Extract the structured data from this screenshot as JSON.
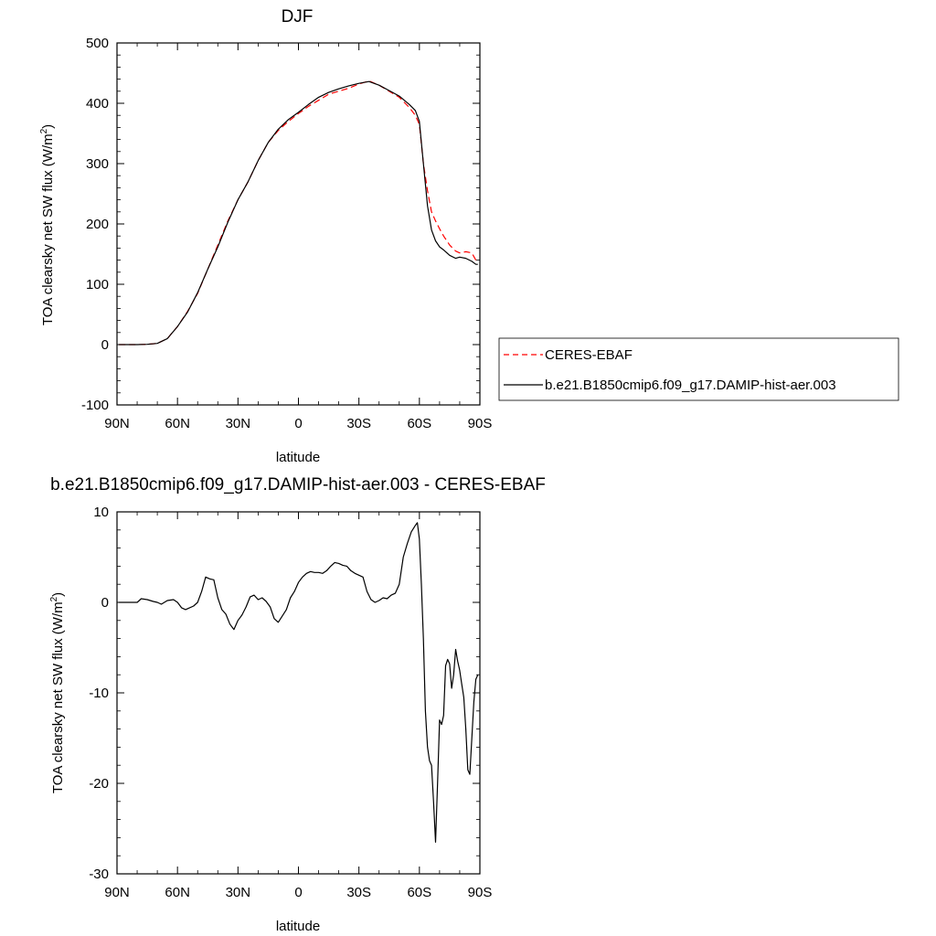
{
  "chart_data": [
    {
      "type": "line",
      "title": "DJF",
      "xlabel": "latitude",
      "ylabel": "TOA clearsky net SW flux (W/m",
      "ylabel_sup": "2",
      "ylabel_close": ")",
      "xlim": [
        90,
        -90
      ],
      "ylim": [
        -100,
        500
      ],
      "xticks": [
        {
          "value": 90,
          "label": "90N"
        },
        {
          "value": 60,
          "label": "60N"
        },
        {
          "value": 30,
          "label": "30N"
        },
        {
          "value": 0,
          "label": "0"
        },
        {
          "value": -30,
          "label": "30S"
        },
        {
          "value": -60,
          "label": "60S"
        },
        {
          "value": -90,
          "label": "90S"
        }
      ],
      "yticks": [
        {
          "value": 500,
          "label": "500"
        },
        {
          "value": 400,
          "label": "400"
        },
        {
          "value": 300,
          "label": "300"
        },
        {
          "value": 200,
          "label": "200"
        },
        {
          "value": 100,
          "label": "100"
        },
        {
          "value": 0,
          "label": "0"
        },
        {
          "value": -100,
          "label": "-100"
        }
      ],
      "legend": {
        "placement": "right"
      },
      "series": [
        {
          "name": "CERES-EBAF",
          "color": "#ff0000",
          "dash": true,
          "x": [
            89,
            85,
            80,
            75,
            70,
            65,
            60,
            55,
            50,
            45,
            40,
            35,
            30,
            25,
            20,
            15,
            10,
            5,
            0,
            -5,
            -10,
            -15,
            -20,
            -25,
            -30,
            -35,
            -40,
            -45,
            -50,
            -55,
            -58,
            -60,
            -62,
            -64,
            -66,
            -68,
            -70,
            -72,
            -75,
            -78,
            -80,
            -83,
            -86,
            -88,
            -89
          ],
          "values": [
            0,
            0,
            0,
            0.5,
            2,
            10,
            30,
            55,
            85,
            125,
            165,
            205,
            240,
            270,
            305,
            335,
            355,
            370,
            383,
            395,
            405,
            415,
            420,
            425,
            432,
            437,
            430,
            420,
            410,
            393,
            380,
            365,
            300,
            255,
            220,
            205,
            192,
            180,
            165,
            155,
            152,
            154,
            152,
            140,
            138
          ]
        },
        {
          "name": "b.e21.B1850cmip6.f09_g17.DAMIP-hist-aer.003",
          "color": "#000000",
          "dash": false,
          "x": [
            89,
            85,
            80,
            75,
            70,
            65,
            60,
            55,
            50,
            45,
            40,
            35,
            30,
            25,
            20,
            15,
            10,
            5,
            0,
            -5,
            -10,
            -15,
            -20,
            -25,
            -30,
            -35,
            -40,
            -45,
            -50,
            -55,
            -58,
            -60,
            -62,
            -64,
            -66,
            -68,
            -70,
            -72,
            -75,
            -78,
            -80,
            -83,
            -86,
            -88,
            -89
          ],
          "values": [
            0,
            0,
            0,
            0.5,
            2,
            10,
            30,
            54,
            86,
            125,
            162,
            203,
            240,
            270,
            305,
            335,
            357,
            373,
            385,
            398,
            410,
            418,
            424,
            429,
            433,
            436,
            430,
            421,
            412,
            398,
            388,
            370,
            300,
            230,
            190,
            172,
            162,
            157,
            148,
            143,
            145,
            143,
            138,
            133,
            133
          ]
        }
      ]
    },
    {
      "type": "line",
      "title": "b.e21.B1850cmip6.f09_g17.DAMIP-hist-aer.003 - CERES-EBAF",
      "xlabel": "latitude",
      "ylabel": "TOA clearsky net SW flux (W/m",
      "ylabel_sup": "2",
      "ylabel_close": ")",
      "xlim": [
        90,
        -90
      ],
      "ylim": [
        -30,
        10
      ],
      "xticks": [
        {
          "value": 90,
          "label": "90N"
        },
        {
          "value": 60,
          "label": "60N"
        },
        {
          "value": 30,
          "label": "30N"
        },
        {
          "value": 0,
          "label": "0"
        },
        {
          "value": -30,
          "label": "30S"
        },
        {
          "value": -60,
          "label": "60S"
        },
        {
          "value": -90,
          "label": "90S"
        }
      ],
      "yticks": [
        {
          "value": 10,
          "label": "10"
        },
        {
          "value": 0,
          "label": "0"
        },
        {
          "value": -10,
          "label": "-10"
        },
        {
          "value": -20,
          "label": "-20"
        },
        {
          "value": -30,
          "label": "-30"
        }
      ],
      "series": [
        {
          "color": "#000000",
          "dash": false,
          "x": [
            89,
            80,
            78,
            75,
            72,
            70,
            68,
            65,
            62,
            60,
            58,
            56,
            55,
            52,
            50,
            48,
            46,
            44,
            42,
            40,
            38,
            36,
            34,
            32,
            30,
            28,
            26,
            24,
            22,
            20,
            18,
            16,
            14,
            12,
            10,
            8,
            6,
            4,
            2,
            0,
            -2,
            -4,
            -6,
            -8,
            -10,
            -12,
            -14,
            -16,
            -18,
            -20,
            -22,
            -24,
            -26,
            -28,
            -30,
            -32,
            -34,
            -36,
            -38,
            -40,
            -42,
            -44,
            -46,
            -48,
            -50,
            -52,
            -54,
            -56,
            -58,
            -59,
            -60,
            -61,
            -62,
            -63,
            -64,
            -65,
            -66,
            -67,
            -68,
            -69,
            -70,
            -71,
            -72,
            -73,
            -74,
            -75,
            -76,
            -77,
            -78,
            -79,
            -80,
            -81,
            -82,
            -83,
            -84,
            -85,
            -86,
            -87,
            -88,
            -89
          ],
          "values": [
            0,
            0,
            0.4,
            0.3,
            0.1,
            0,
            -0.2,
            0.2,
            0.3,
            0,
            -0.6,
            -0.8,
            -0.7,
            -0.4,
            0,
            1.2,
            2.8,
            2.6,
            2.5,
            0.5,
            -0.8,
            -1.3,
            -2.4,
            -3.0,
            -2.0,
            -1.4,
            -0.5,
            0.6,
            0.8,
            0.3,
            0.5,
            0.1,
            -0.5,
            -1.8,
            -2.2,
            -1.5,
            -0.8,
            0.5,
            1.2,
            2.2,
            2.8,
            3.2,
            3.4,
            3.3,
            3.3,
            3.2,
            3.5,
            4.0,
            4.4,
            4.3,
            4.1,
            4.0,
            3.5,
            3.2,
            3.0,
            2.8,
            1.2,
            0.3,
            0,
            0.2,
            0.5,
            0.4,
            0.8,
            1.0,
            2.0,
            5.0,
            6.5,
            7.8,
            8.5,
            8.8,
            7.0,
            2.0,
            -4.0,
            -12.0,
            -16.0,
            -17.5,
            -18.0,
            -22.0,
            -26.5,
            -20.0,
            -13.0,
            -13.5,
            -12.5,
            -7.0,
            -6.3,
            -6.8,
            -9.5,
            -8.0,
            -5.2,
            -6.5,
            -7.5,
            -9.0,
            -10.5,
            -14.0,
            -18.5,
            -19.0,
            -15.0,
            -11.0,
            -8.5,
            -8.0
          ]
        }
      ]
    }
  ]
}
